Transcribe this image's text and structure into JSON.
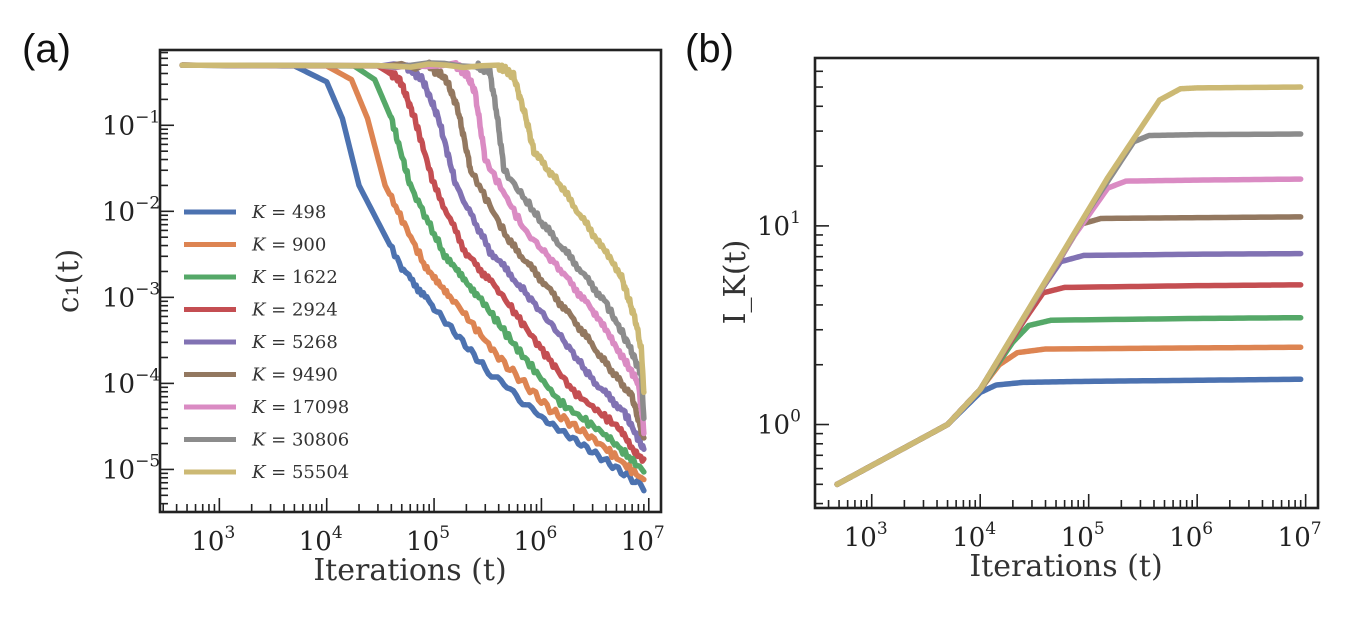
{
  "chart_data": [
    {
      "panel_label": "(a)",
      "type": "line",
      "xlabel": "Iterations (t)",
      "ylabel": "c₁(t)",
      "xscale": "log",
      "yscale": "log",
      "xlim": [
        280,
        13000000
      ],
      "ylim": [
        3.2e-06,
        0.75
      ],
      "x_ticks": [
        {
          "base": "10",
          "exp": "3",
          "value": 1000
        },
        {
          "base": "10",
          "exp": "4",
          "value": 10000
        },
        {
          "base": "10",
          "exp": "5",
          "value": 100000
        },
        {
          "base": "10",
          "exp": "6",
          "value": 1000000
        },
        {
          "base": "10",
          "exp": "7",
          "value": 10000000
        }
      ],
      "y_ticks": [
        {
          "base": "10",
          "exp": "−5",
          "value": 1e-05
        },
        {
          "base": "10",
          "exp": "−4",
          "value": 0.0001
        },
        {
          "base": "10",
          "exp": "−3",
          "value": 0.001
        },
        {
          "base": "10",
          "exp": "−2",
          "value": 0.01
        },
        {
          "base": "10",
          "exp": "−1",
          "value": 0.1
        }
      ],
      "grid": false,
      "legend": "center-left",
      "series": [
        {
          "name": "K = 498",
          "K_label": "K",
          "K_value": "498",
          "color": "#4c72b0",
          "points": [
            [
              450,
              0.5
            ],
            [
              5000,
              0.49
            ],
            [
              10000,
              0.32
            ],
            [
              14000,
              0.12
            ],
            [
              20000,
              0.02
            ],
            [
              50000,
              0.0022
            ],
            [
              100000,
              0.00075
            ],
            [
              300000,
              0.00015
            ],
            [
              1000000,
              4e-05
            ],
            [
              3000000,
              1.6e-05
            ],
            [
              9000000,
              6.2e-06
            ]
          ]
        },
        {
          "name": "K = 900",
          "K_label": "K",
          "K_value": "900",
          "color": "#dd8452",
          "points": [
            [
              450,
              0.5
            ],
            [
              10000,
              0.49
            ],
            [
              17000,
              0.34
            ],
            [
              24000,
              0.12
            ],
            [
              35000,
              0.02
            ],
            [
              80000,
              0.0025
            ],
            [
              150000,
              0.00095
            ],
            [
              400000,
              0.0002
            ],
            [
              1200000,
              5e-05
            ],
            [
              3500000,
              2e-05
            ],
            [
              9000000,
              7.5e-06
            ]
          ]
        },
        {
          "name": "K = 1622",
          "K_label": "K",
          "K_value": "1622",
          "color": "#55a868",
          "points": [
            [
              450,
              0.5
            ],
            [
              18000,
              0.49
            ],
            [
              28000,
              0.34
            ],
            [
              40000,
              0.12
            ],
            [
              60000,
              0.02
            ],
            [
              130000,
              0.0028
            ],
            [
              250000,
              0.0011
            ],
            [
              600000,
              0.00025
            ],
            [
              1500000,
              6e-05
            ],
            [
              4000000,
              2.5e-05
            ],
            [
              9000000,
              9.5e-06
            ]
          ]
        },
        {
          "name": "K = 2924",
          "K_label": "K",
          "K_value": "2924",
          "color": "#c44e52",
          "points": [
            [
              450,
              0.5
            ],
            [
              30000,
              0.49
            ],
            [
              48000,
              0.34
            ],
            [
              66000,
              0.12
            ],
            [
              100000,
              0.02
            ],
            [
              200000,
              0.0032
            ],
            [
              400000,
              0.0012
            ],
            [
              900000,
              0.0003
            ],
            [
              2000000,
              8e-05
            ],
            [
              5000000,
              3.2e-05
            ],
            [
              9000000,
              1.2e-05
            ]
          ]
        },
        {
          "name": "K = 5268",
          "K_label": "K",
          "K_value": "5268",
          "color": "#8172b3",
          "points": [
            [
              450,
              0.5
            ],
            [
              55000,
              0.49
            ],
            [
              78000,
              0.34
            ],
            [
              110000,
              0.12
            ],
            [
              160000,
              0.02
            ],
            [
              330000,
              0.0035
            ],
            [
              650000,
              0.0013
            ],
            [
              1400000,
              0.0004
            ],
            [
              3000000,
              0.00011
            ],
            [
              6000000,
              4.5e-05
            ],
            [
              9000000,
              1.7e-05
            ]
          ]
        },
        {
          "name": "K = 9490",
          "K_label": "K",
          "K_value": "9490",
          "color": "#937860",
          "points": [
            [
              450,
              0.5
            ],
            [
              90000,
              0.49
            ],
            [
              130000,
              0.34
            ],
            [
              165000,
              0.16
            ],
            [
              220000,
              0.03
            ],
            [
              500000,
              0.0045
            ],
            [
              1000000,
              0.0016
            ],
            [
              2000000,
              0.00055
            ],
            [
              4000000,
              0.00017
            ],
            [
              7000000,
              7e-05
            ],
            [
              9000000,
              2.2e-05
            ]
          ]
        },
        {
          "name": "K = 17098",
          "K_label": "K",
          "K_value": "17098",
          "color": "#da8bc3",
          "points": [
            [
              450,
              0.5
            ],
            [
              160000,
              0.49
            ],
            [
              200000,
              0.4
            ],
            [
              240000,
              0.25
            ],
            [
              300000,
              0.04
            ],
            [
              700000,
              0.006
            ],
            [
              1500000,
              0.0021
            ],
            [
              3000000,
              0.0007
            ],
            [
              5500000,
              0.00022
            ],
            [
              8000000,
              0.0001
            ],
            [
              9000000,
              2.8e-05
            ]
          ]
        },
        {
          "name": "K = 30806",
          "K_label": "K",
          "K_value": "30806",
          "color": "#8c8c8c",
          "points": [
            [
              450,
              0.5
            ],
            [
              250000,
              0.49
            ],
            [
              330000,
              0.42
            ],
            [
              380000,
              0.15
            ],
            [
              450000,
              0.03
            ],
            [
              1000000,
              0.0075
            ],
            [
              2000000,
              0.0026
            ],
            [
              4000000,
              0.00085
            ],
            [
              6500000,
              0.00028
            ],
            [
              8500000,
              0.00013
            ],
            [
              9000000,
              4e-05
            ]
          ]
        },
        {
          "name": "K = 55504",
          "K_label": "K",
          "K_value": "55504",
          "color": "#ccb974",
          "points": [
            [
              450,
              0.5
            ],
            [
              400000,
              0.49
            ],
            [
              550000,
              0.38
            ],
            [
              720000,
              0.12
            ],
            [
              850000,
              0.05
            ],
            [
              1500000,
              0.02
            ],
            [
              3000000,
              0.0055
            ],
            [
              5500000,
              0.0018
            ],
            [
              7500000,
              0.00055
            ],
            [
              8500000,
              0.00025
            ],
            [
              9000000,
              8.5e-05
            ]
          ]
        }
      ]
    },
    {
      "panel_label": "(b)",
      "type": "line",
      "xlabel": "Iterations (t)",
      "ylabel": "I_K(t)",
      "xscale": "log",
      "yscale": "log",
      "xlim": [
        300,
        13000000
      ],
      "ylim": [
        0.38,
        70
      ],
      "x_ticks": [
        {
          "base": "10",
          "exp": "3",
          "value": 1000
        },
        {
          "base": "10",
          "exp": "4",
          "value": 10000
        },
        {
          "base": "10",
          "exp": "5",
          "value": 100000
        },
        {
          "base": "10",
          "exp": "6",
          "value": 1000000
        },
        {
          "base": "10",
          "exp": "7",
          "value": 10000000
        }
      ],
      "y_ticks": [
        {
          "base": "10",
          "exp": "0",
          "value": 1
        },
        {
          "base": "10",
          "exp": "1",
          "value": 10
        }
      ],
      "grid": false,
      "series": [
        {
          "name": "K = 498",
          "color": "#4c72b0",
          "points": [
            [
              480,
              0.5
            ],
            [
              5000,
              1.0
            ],
            [
              10000,
              1.45
            ],
            [
              14000,
              1.58
            ],
            [
              25000,
              1.63
            ],
            [
              100000,
              1.65
            ],
            [
              1000000,
              1.67
            ],
            [
              9000000,
              1.69
            ]
          ]
        },
        {
          "name": "K = 900",
          "color": "#dd8452",
          "points": [
            [
              480,
              0.5
            ],
            [
              5000,
              1.0
            ],
            [
              10000,
              1.5
            ],
            [
              15000,
              2.0
            ],
            [
              22000,
              2.3
            ],
            [
              40000,
              2.4
            ],
            [
              1000000,
              2.43
            ],
            [
              9000000,
              2.45
            ]
          ]
        },
        {
          "name": "K = 1622",
          "color": "#55a868",
          "points": [
            [
              480,
              0.5
            ],
            [
              5000,
              1.0
            ],
            [
              10000,
              1.5
            ],
            [
              20000,
              2.6
            ],
            [
              28000,
              3.15
            ],
            [
              45000,
              3.35
            ],
            [
              1000000,
              3.42
            ],
            [
              9000000,
              3.45
            ]
          ]
        },
        {
          "name": "K = 2924",
          "color": "#c44e52",
          "points": [
            [
              480,
              0.5
            ],
            [
              5000,
              1.0
            ],
            [
              10000,
              1.5
            ],
            [
              25000,
              3.3
            ],
            [
              38000,
              4.6
            ],
            [
              60000,
              4.9
            ],
            [
              1000000,
              5.0
            ],
            [
              9000000,
              5.05
            ]
          ]
        },
        {
          "name": "K = 5268",
          "color": "#8172b3",
          "points": [
            [
              480,
              0.5
            ],
            [
              5000,
              1.0
            ],
            [
              10000,
              1.5
            ],
            [
              35000,
              4.6
            ],
            [
              55000,
              6.6
            ],
            [
              90000,
              7.1
            ],
            [
              1000000,
              7.2
            ],
            [
              9000000,
              7.25
            ]
          ]
        },
        {
          "name": "K = 9490",
          "color": "#937860",
          "points": [
            [
              480,
              0.5
            ],
            [
              5000,
              1.0
            ],
            [
              10000,
              1.5
            ],
            [
              50000,
              6.3
            ],
            [
              85000,
              10.2
            ],
            [
              130000,
              10.9
            ],
            [
              1000000,
              11.0
            ],
            [
              9000000,
              11.1
            ]
          ]
        },
        {
          "name": "K = 17098",
          "color": "#da8bc3",
          "points": [
            [
              480,
              0.5
            ],
            [
              5000,
              1.0
            ],
            [
              10000,
              1.5
            ],
            [
              70000,
              8.6
            ],
            [
              150000,
              15.5
            ],
            [
              220000,
              16.8
            ],
            [
              1000000,
              17.0
            ],
            [
              9000000,
              17.2
            ]
          ]
        },
        {
          "name": "K = 30806",
          "color": "#8c8c8c",
          "points": [
            [
              480,
              0.5
            ],
            [
              5000,
              1.0
            ],
            [
              10000,
              1.5
            ],
            [
              100000,
              12.0
            ],
            [
              260000,
              26.5
            ],
            [
              360000,
              28.5
            ],
            [
              1000000,
              28.8
            ],
            [
              9000000,
              29.0
            ]
          ]
        },
        {
          "name": "K = 55504",
          "color": "#ccb974",
          "points": [
            [
              480,
              0.5
            ],
            [
              5000,
              1.0
            ],
            [
              10000,
              1.5
            ],
            [
              150000,
              17.5
            ],
            [
              450000,
              43.0
            ],
            [
              700000,
              49.0
            ],
            [
              1000000,
              49.5
            ],
            [
              9000000,
              50.0
            ]
          ]
        }
      ]
    }
  ]
}
